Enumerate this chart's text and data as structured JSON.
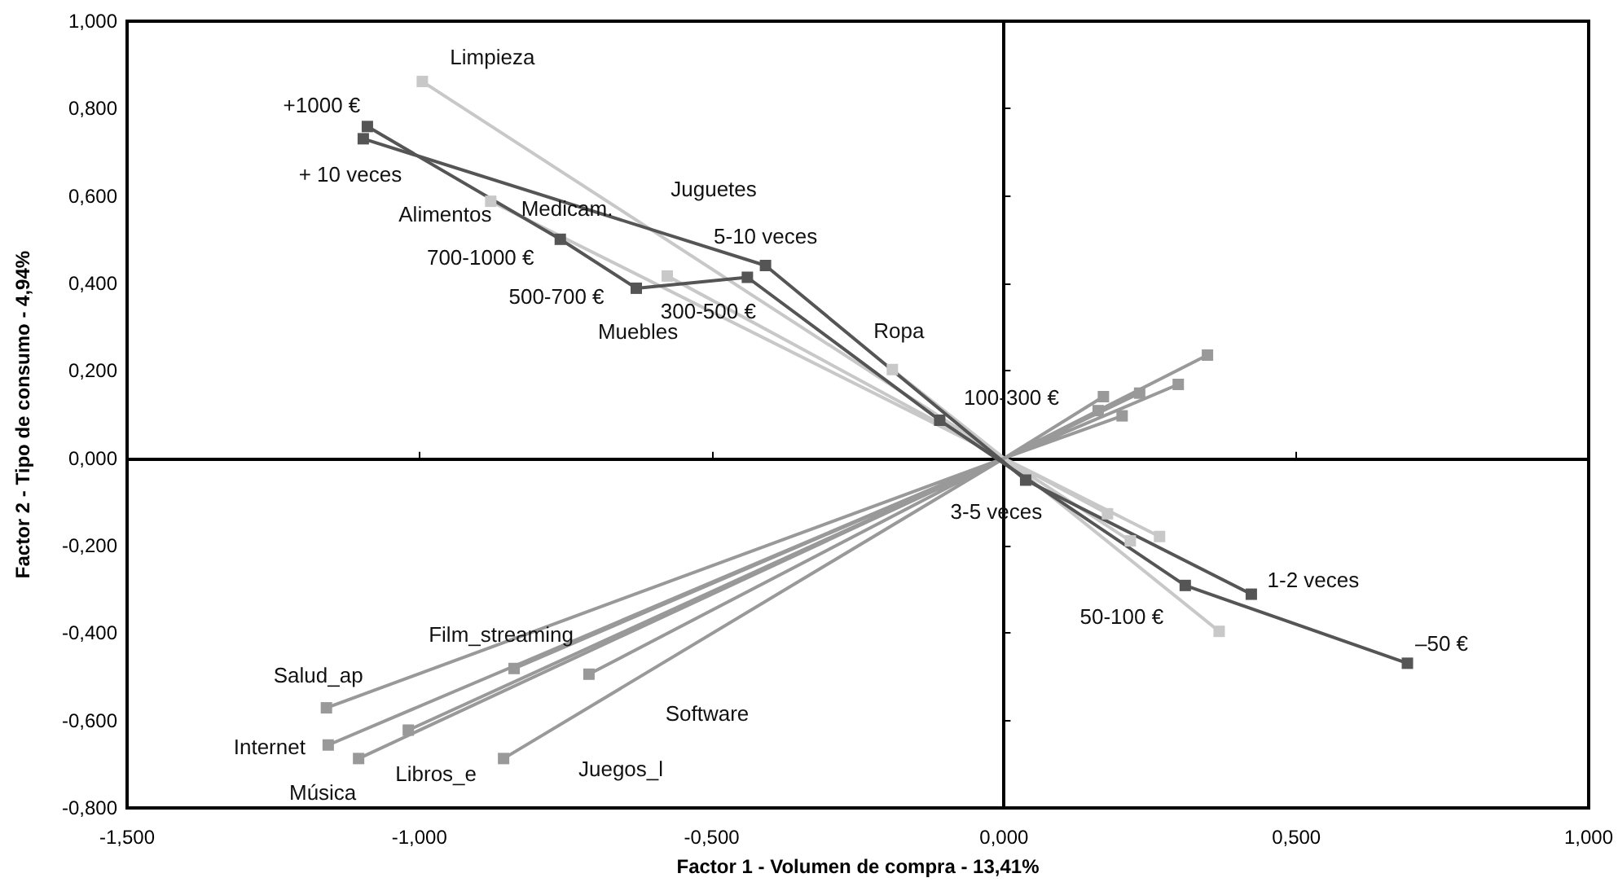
{
  "chart_data": {
    "type": "line",
    "xlabel": "Factor 1 - Volumen de compra - 13,41%",
    "ylabel": "Factor 2 - Tipo de consumo - 4,94%",
    "xlim": [
      -1.5,
      1.0
    ],
    "ylim": [
      -0.8,
      1.0
    ],
    "xticks": [
      {
        "value": -1.5,
        "label": "-1,500"
      },
      {
        "value": -1.0,
        "label": "-1,000"
      },
      {
        "value": -0.5,
        "label": "-0,500"
      },
      {
        "value": 0,
        "label": "0,000"
      },
      {
        "value": 0.5,
        "label": "0,500"
      },
      {
        "value": 1.0,
        "label": "1,000"
      }
    ],
    "yticks": [
      {
        "value": -0.8,
        "label": "-0,800"
      },
      {
        "value": -0.6,
        "label": "-0,600"
      },
      {
        "value": -0.4,
        "label": "-0,400"
      },
      {
        "value": -0.2,
        "label": "-0,200"
      },
      {
        "value": 0,
        "label": "0,000"
      },
      {
        "value": 0.2,
        "label": "0,200"
      },
      {
        "value": 0.4,
        "label": "0,400"
      },
      {
        "value": 0.6,
        "label": "0,600"
      },
      {
        "value": 0.8,
        "label": "0,800"
      },
      {
        "value": 1.0,
        "label": "1,000"
      }
    ],
    "marker": "square",
    "line_style": "solid",
    "series": [
      {
        "color": "#c8c8c8",
        "x": [
          -0.995,
          0,
          null,
          -0.878,
          0,
          null,
          -0.576,
          0,
          null,
          -0.191,
          0,
          null,
          0.177,
          0,
          null,
          0.266,
          0,
          null,
          0.216,
          0,
          null,
          0.368,
          0
        ],
        "values": [
          0.862,
          0,
          null,
          0.588,
          0,
          null,
          0.417,
          0,
          null,
          0.203,
          0,
          null,
          -0.127,
          0,
          null,
          -0.179,
          0,
          null,
          -0.189,
          0,
          null,
          -0.396,
          0
        ]
      },
      {
        "color": "#999999",
        "x": [
          -1.159,
          0,
          null,
          -1.156,
          0,
          null,
          -1.104,
          0,
          null,
          -1.019,
          0,
          null,
          -0.838,
          0,
          null,
          -0.71,
          0,
          null,
          -0.856,
          0,
          null,
          0.348,
          0,
          null,
          0.298,
          0,
          null,
          0.232,
          0,
          null,
          0.17,
          0,
          null,
          0.202,
          0,
          null,
          0.161,
          0
        ],
        "values": [
          -0.571,
          0,
          null,
          -0.656,
          0,
          null,
          -0.687,
          0,
          null,
          -0.622,
          0,
          null,
          -0.481,
          0,
          null,
          -0.494,
          0,
          null,
          -0.687,
          0,
          null,
          0.236,
          0,
          null,
          0.169,
          0,
          null,
          0.149,
          0,
          null,
          0.141,
          0,
          null,
          0.097,
          0,
          null,
          0.109,
          0
        ]
      },
      {
        "color": "#555555",
        "x": [
          -1.089,
          -0.759,
          -0.629,
          -0.439,
          -0.11,
          0.31,
          0.69
        ],
        "values": [
          0.759,
          0.501,
          0.389,
          0.414,
          0.087,
          -0.291,
          -0.469
        ]
      },
      {
        "color": "#555555",
        "x": [
          -1.096,
          -0.408,
          0.037,
          0.423
        ],
        "values": [
          0.731,
          0.441,
          -0.05,
          -0.311
        ]
      }
    ],
    "annotations": [
      {
        "text": "Limpieza",
        "x": -0.995,
        "y": 0.862
      },
      {
        "text": "+1000 €",
        "x": -1.089,
        "y": 0.759
      },
      {
        "text": "+ 10 veces",
        "x": -1.096,
        "y": 0.731
      },
      {
        "text": "Alimentos",
        "x": -0.878,
        "y": 0.588
      },
      "Medicam.",
      "Juguetes",
      {
        "text": "5-10 veces",
        "x": -0.408,
        "y": 0.441
      },
      {
        "text": "700-1000 €",
        "x": -0.759,
        "y": 0.501
      },
      {
        "text": "500-700 €",
        "x": -0.629,
        "y": 0.389
      },
      {
        "text": "300-500 €",
        "x": -0.439,
        "y": 0.414
      },
      {
        "text": "Muebles",
        "x": -0.576,
        "y": 0.417
      },
      {
        "text": "Ropa",
        "x": -0.191,
        "y": 0.203
      },
      {
        "text": "100-300 €",
        "x": -0.11,
        "y": 0.087
      },
      {
        "text": "3-5 veces",
        "x": 0.037,
        "y": -0.05
      },
      {
        "text": "1-2 veces",
        "x": 0.423,
        "y": -0.311
      },
      {
        "text": "50-100 €",
        "x": 0.31,
        "y": -0.291
      },
      {
        "text": "–50 €",
        "x": 0.69,
        "y": -0.469
      },
      {
        "text": "Film_streaming",
        "x": -0.838,
        "y": -0.481
      },
      {
        "text": "Salud_ap",
        "x": -1.159,
        "y": -0.571
      },
      "Software",
      {
        "text": "Internet",
        "x": -1.156,
        "y": -0.656
      },
      {
        "text": "Libros_e",
        "x": -1.019,
        "y": -0.622
      },
      "Juegos_l",
      {
        "text": "Música",
        "x": -1.104,
        "y": -0.687
      }
    ]
  }
}
